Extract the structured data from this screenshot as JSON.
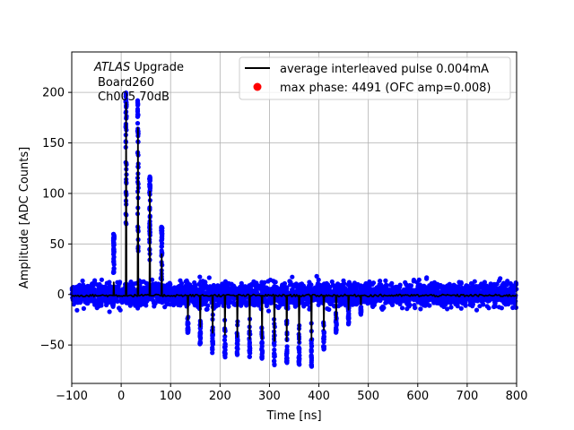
{
  "chart_data": {
    "type": "scatter",
    "xlabel": "Time [ns]",
    "ylabel": "Amplitude [ADC Counts]",
    "xlim": [
      -100,
      800
    ],
    "ylim": [
      -88,
      240
    ],
    "xticks": [
      -100,
      0,
      100,
      200,
      300,
      400,
      500,
      600,
      700,
      800
    ],
    "yticks": [
      -50,
      0,
      50,
      100,
      150,
      200
    ],
    "grid": true,
    "annotation": {
      "line1_italic": "ATLAS",
      "line1_rest": " Upgrade",
      "line2": "Board260",
      "line3": "Ch005 70dB"
    },
    "legend": {
      "placement": "top-right",
      "entries": [
        {
          "label": "average interleaved pulse 0.004mA",
          "marker": "line",
          "color": "#000000"
        },
        {
          "label": "max phase: 4491 (OFC amp=0.008)",
          "marker": "dot",
          "color": "#ff0000"
        }
      ]
    },
    "series": [
      {
        "kind": "scatter",
        "color": "#0000ff",
        "noise_band": [
          -18,
          18
        ],
        "x_range": [
          -100,
          800
        ],
        "positive_spikes": [
          {
            "x": -15,
            "max": 60
          },
          {
            "x": 10,
            "max": 200
          },
          {
            "x": 34,
            "max": 192
          },
          {
            "x": 58,
            "max": 118
          },
          {
            "x": 82,
            "max": 67
          }
        ],
        "negative_spikes": [
          {
            "x": 135,
            "min": -38
          },
          {
            "x": 160,
            "min": -50
          },
          {
            "x": 185,
            "min": -58
          },
          {
            "x": 210,
            "min": -62
          },
          {
            "x": 235,
            "min": -60
          },
          {
            "x": 260,
            "min": -62
          },
          {
            "x": 285,
            "min": -64
          },
          {
            "x": 310,
            "min": -70
          },
          {
            "x": 335,
            "min": -68
          },
          {
            "x": 360,
            "min": -70
          },
          {
            "x": 385,
            "min": -72
          },
          {
            "x": 410,
            "min": -55
          },
          {
            "x": 435,
            "min": -40
          },
          {
            "x": 460,
            "min": -30
          },
          {
            "x": 485,
            "min": -20
          }
        ]
      },
      {
        "kind": "line",
        "color": "#000000",
        "baseline": -1,
        "positive_peaks": [
          {
            "x": -15,
            "y": 12
          },
          {
            "x": 10,
            "y": 190
          },
          {
            "x": 34,
            "y": 165
          },
          {
            "x": 58,
            "y": 102
          },
          {
            "x": 82,
            "y": 40
          }
        ],
        "negative_peaks": [
          {
            "x": 135,
            "y": -25
          },
          {
            "x": 160,
            "y": -32
          },
          {
            "x": 185,
            "y": -38
          },
          {
            "x": 210,
            "y": -40
          },
          {
            "x": 235,
            "y": -42
          },
          {
            "x": 260,
            "y": -44
          },
          {
            "x": 285,
            "y": -44
          },
          {
            "x": 310,
            "y": -46
          },
          {
            "x": 335,
            "y": -46
          },
          {
            "x": 360,
            "y": -48
          },
          {
            "x": 385,
            "y": -45
          },
          {
            "x": 410,
            "y": -35
          },
          {
            "x": 435,
            "y": -25
          },
          {
            "x": 460,
            "y": -15
          },
          {
            "x": 485,
            "y": -10
          }
        ]
      }
    ]
  }
}
